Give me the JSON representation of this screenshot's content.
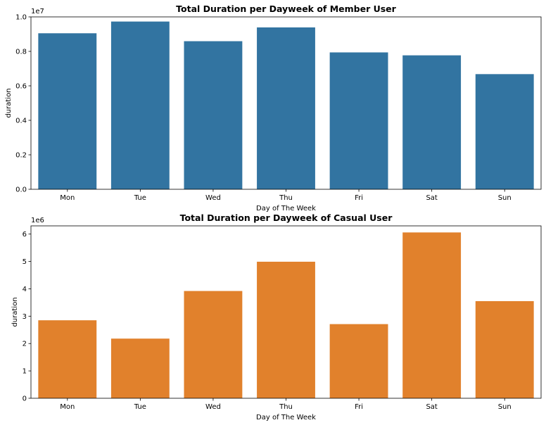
{
  "chart_data": [
    {
      "type": "bar",
      "title": "Total Duration per Dayweek of Member User",
      "xlabel": "Day of The Week",
      "ylabel": "duration",
      "offset_label": "1e7",
      "categories": [
        "Mon",
        "Tue",
        "Wed",
        "Thu",
        "Fri",
        "Sat",
        "Sun"
      ],
      "values": [
        9050000,
        9730000,
        8590000,
        9390000,
        7940000,
        7770000,
        6680000
      ],
      "ylim": [
        0,
        10000000
      ],
      "yticks": [
        0,
        2000000,
        4000000,
        6000000,
        8000000,
        10000000
      ],
      "ytick_labels": [
        "0.0",
        "0.2",
        "0.4",
        "0.6",
        "0.8",
        "1.0"
      ],
      "color": "#3274a1",
      "grid": false
    },
    {
      "type": "bar",
      "title": "Total Duration per Dayweek of Casual User",
      "xlabel": "Day of The Week",
      "ylabel": "duration",
      "offset_label": "1e6",
      "categories": [
        "Mon",
        "Tue",
        "Wed",
        "Thu",
        "Fri",
        "Sat",
        "Sun"
      ],
      "values": [
        2850000,
        2180000,
        3920000,
        4990000,
        2710000,
        6060000,
        3550000
      ],
      "ylim": [
        0,
        6300000
      ],
      "yticks": [
        0,
        1000000,
        2000000,
        3000000,
        4000000,
        5000000,
        6000000
      ],
      "ytick_labels": [
        "0",
        "1",
        "2",
        "3",
        "4",
        "5",
        "6"
      ],
      "color": "#e1812c",
      "grid": false
    }
  ]
}
